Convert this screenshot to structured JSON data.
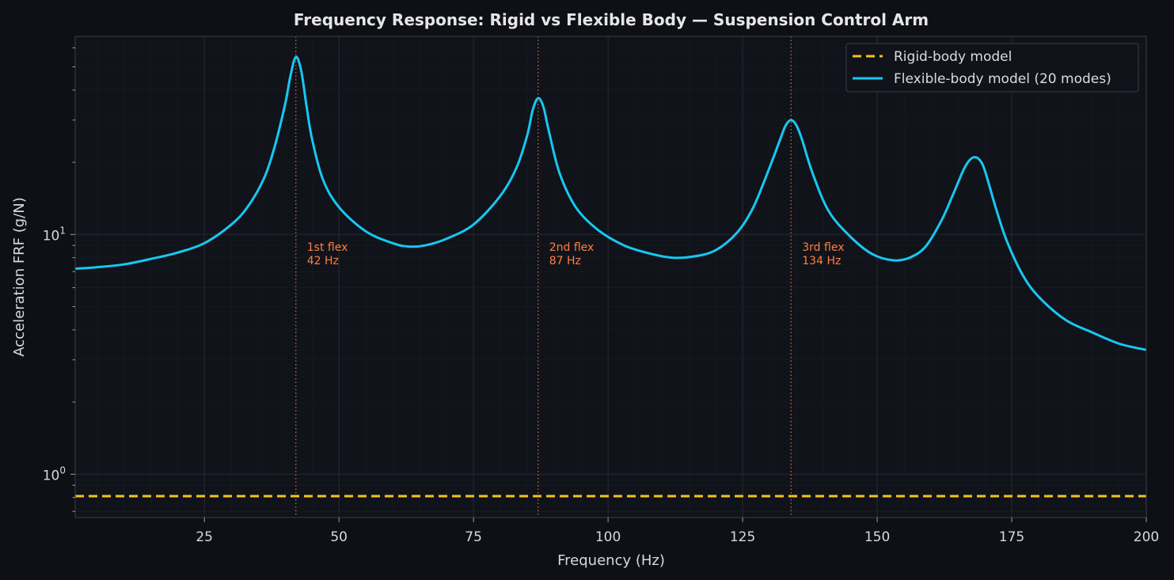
{
  "chart_data": {
    "type": "line",
    "title": "Frequency Response: Rigid vs Flexible Body — Suspension Control Arm",
    "xlabel": "Frequency (Hz)",
    "ylabel": "Acceleration FRF (g/N)",
    "xlim": [
      1,
      200
    ],
    "ylim": [
      0.66,
      67
    ],
    "yscale": "log",
    "xticks": [
      25,
      50,
      75,
      100,
      125,
      150,
      175,
      200
    ],
    "xtick_labels": [
      "25",
      "50",
      "75",
      "100",
      "125",
      "150",
      "175",
      "200"
    ],
    "yticks": [
      {
        "value": 1,
        "base": "10",
        "exp": "0"
      },
      {
        "value": 10,
        "base": "10",
        "exp": "1"
      }
    ],
    "grid": true,
    "legend_position": "top-right",
    "series": [
      {
        "name": "Rigid-body model",
        "style": "dashed",
        "color": "#f5c218",
        "x": [
          1,
          200
        ],
        "y": [
          0.81,
          0.81
        ]
      },
      {
        "name": "Flexible-body model (20 modes)",
        "style": "solid",
        "color": "#17c8f2",
        "x": [
          1,
          5,
          10,
          15,
          20,
          25,
          30,
          33,
          36,
          38,
          40,
          41,
          42,
          43,
          44,
          45,
          47,
          50,
          55,
          60,
          63,
          66,
          70,
          75,
          80,
          83,
          85,
          86,
          87,
          88,
          89,
          91,
          94,
          98,
          103,
          108,
          112,
          116,
          120,
          124,
          127,
          130,
          132,
          133,
          134,
          135,
          136,
          138,
          141,
          145,
          149,
          153,
          156,
          159,
          162,
          164,
          166,
          167,
          168,
          169,
          170,
          172,
          174,
          177,
          180,
          185,
          190,
          195,
          200
        ],
        "y": [
          7.2,
          7.3,
          7.5,
          7.9,
          8.4,
          9.2,
          11.0,
          13.0,
          17.0,
          23.0,
          35.0,
          46.0,
          55.0,
          48.0,
          34.0,
          25.0,
          17.0,
          13.0,
          10.3,
          9.2,
          8.9,
          9.0,
          9.6,
          11.0,
          14.5,
          19.0,
          26.0,
          33.0,
          37.0,
          34.0,
          27.0,
          18.0,
          13.0,
          10.5,
          9.0,
          8.3,
          8.0,
          8.1,
          8.6,
          10.2,
          13.0,
          19.0,
          25.0,
          28.5,
          30.0,
          28.5,
          25.0,
          18.0,
          12.5,
          9.8,
          8.3,
          7.8,
          8.0,
          8.9,
          11.5,
          14.5,
          18.5,
          20.2,
          21.0,
          20.5,
          18.5,
          13.0,
          9.5,
          6.8,
          5.5,
          4.4,
          3.9,
          3.5,
          3.3
        ]
      }
    ],
    "annotations": [
      {
        "x": 42,
        "line1": "1st flex",
        "line2": "42 Hz"
      },
      {
        "x": 87,
        "line1": "2nd flex",
        "line2": "87 Hz"
      },
      {
        "x": 134,
        "line1": "3rd flex",
        "line2": "134 Hz"
      }
    ],
    "colors": {
      "background": "#0e1016",
      "plot_area": "#11131a",
      "grid": "#262a33",
      "annotation": "#ff7f3f"
    }
  }
}
